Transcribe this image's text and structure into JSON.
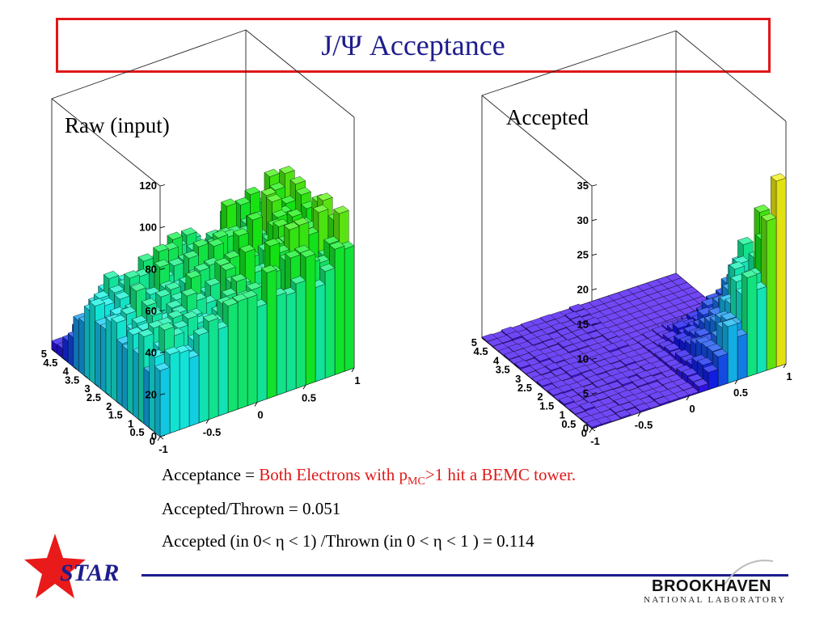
{
  "slide": {
    "title": "J/Ψ Acceptance",
    "caption1": {
      "lead": "Acceptance = ",
      "red_part_a": "Both Electrons with p",
      "red_sub": "MC",
      "red_part_b": ">1 hit a BEMC tower."
    },
    "caption2": "Accepted/Thrown = 0.051",
    "caption3": "Accepted (in 0< η < 1) /Thrown (in 0 < η < 1 )  = 0.114",
    "logo_star": "STAR",
    "logo_bnl_main": "BROOKHAVEN",
    "logo_bnl_sub": "NATIONAL LABORATORY",
    "colors": {
      "title": "#1d1d8c",
      "frame": "#e01818",
      "highlight": "#e01818",
      "rule": "#1d1d8c"
    }
  },
  "chart_data": [
    {
      "type": "lego3d",
      "panel_label": "Raw (input)",
      "x_ticks": [
        "-1",
        "-0.5",
        "0",
        "0.5",
        "1"
      ],
      "y_ticks": [
        "0",
        "0.5",
        "1",
        "1.5",
        "2",
        "2.5",
        "3",
        "3.5",
        "4",
        "4.5",
        "5"
      ],
      "z_ticks": [
        "0",
        "20",
        "40",
        "60",
        "80",
        "100",
        "120"
      ],
      "xlim": [
        -1,
        1
      ],
      "ylim": [
        0,
        5
      ],
      "zlim": [
        0,
        120
      ],
      "nx": 20,
      "ny": 20,
      "profile": "raw",
      "peak_value": 70
    },
    {
      "type": "lego3d",
      "panel_label": "Accepted",
      "x_ticks": [
        "-1",
        "-0.5",
        "0",
        "0.5",
        "1"
      ],
      "y_ticks": [
        "0",
        "0.5",
        "1",
        "1.5",
        "2",
        "2.5",
        "3",
        "3.5",
        "4",
        "4.5",
        "5"
      ],
      "z_ticks": [
        "0",
        "5",
        "10",
        "15",
        "20",
        "25",
        "30",
        "35"
      ],
      "xlim": [
        -1,
        1
      ],
      "ylim": [
        0,
        5
      ],
      "zlim": [
        0,
        35
      ],
      "nx": 20,
      "ny": 20,
      "profile": "accepted",
      "peak_value": 26
    }
  ]
}
